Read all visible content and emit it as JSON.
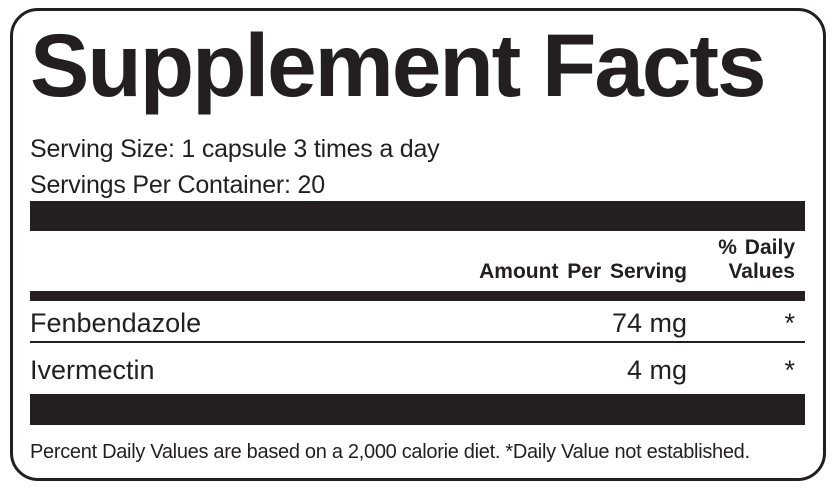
{
  "label": {
    "title": "Supplement Facts",
    "serving_size_line": "Serving Size: 1 capsule 3 times a day",
    "servings_per_container_line": "Servings Per Container: 20",
    "footnote": "Percent Daily Values are based on a 2,000 calorie diet. *Daily Value not established.",
    "ink_color": "#231f20",
    "background_color": "#ffffff"
  },
  "table": {
    "amount_header": "Amount Per Serving",
    "daily_header_line1": "% Daily",
    "daily_header_line2": "Values",
    "rows": [
      {
        "name": "Fenbendazole",
        "amount": "74 mg",
        "daily_value": "*"
      },
      {
        "name": "Ivermectin",
        "amount": "4 mg",
        "daily_value": "*"
      }
    ]
  }
}
